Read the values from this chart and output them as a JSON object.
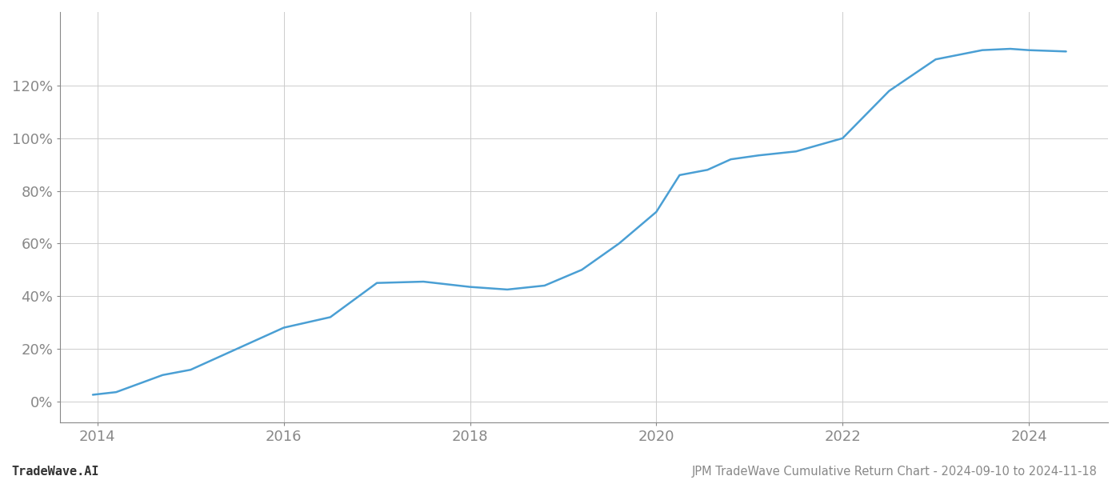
{
  "title": "JPM TradeWave Cumulative Return Chart - 2024-09-10 to 2024-11-18",
  "watermark": "TradeWave.AI",
  "line_color": "#4a9fd4",
  "line_width": 1.8,
  "background_color": "#ffffff",
  "grid_color": "#cccccc",
  "x_years": [
    2013.95,
    2014.2,
    2014.7,
    2015.0,
    2015.5,
    2016.0,
    2016.5,
    2017.0,
    2017.5,
    2018.0,
    2018.4,
    2018.8,
    2019.2,
    2019.6,
    2020.0,
    2020.25,
    2020.55,
    2020.8,
    2021.1,
    2021.5,
    2022.0,
    2022.5,
    2023.0,
    2023.5,
    2023.8,
    2024.0,
    2024.4
  ],
  "y_values": [
    2.5,
    3.5,
    10.0,
    12.0,
    20.0,
    28.0,
    32.0,
    45.0,
    45.5,
    43.5,
    42.5,
    44.0,
    50.0,
    60.0,
    72.0,
    86.0,
    88.0,
    92.0,
    93.5,
    95.0,
    100.0,
    118.0,
    130.0,
    133.5,
    134.0,
    133.5,
    133.0
  ],
  "xlim": [
    2013.6,
    2024.85
  ],
  "ylim": [
    -8,
    148
  ],
  "yticks": [
    0,
    20,
    40,
    60,
    80,
    100,
    120
  ],
  "xticks": [
    2014,
    2016,
    2018,
    2020,
    2022,
    2024
  ],
  "title_fontsize": 10.5,
  "tick_fontsize": 13,
  "watermark_fontsize": 11
}
